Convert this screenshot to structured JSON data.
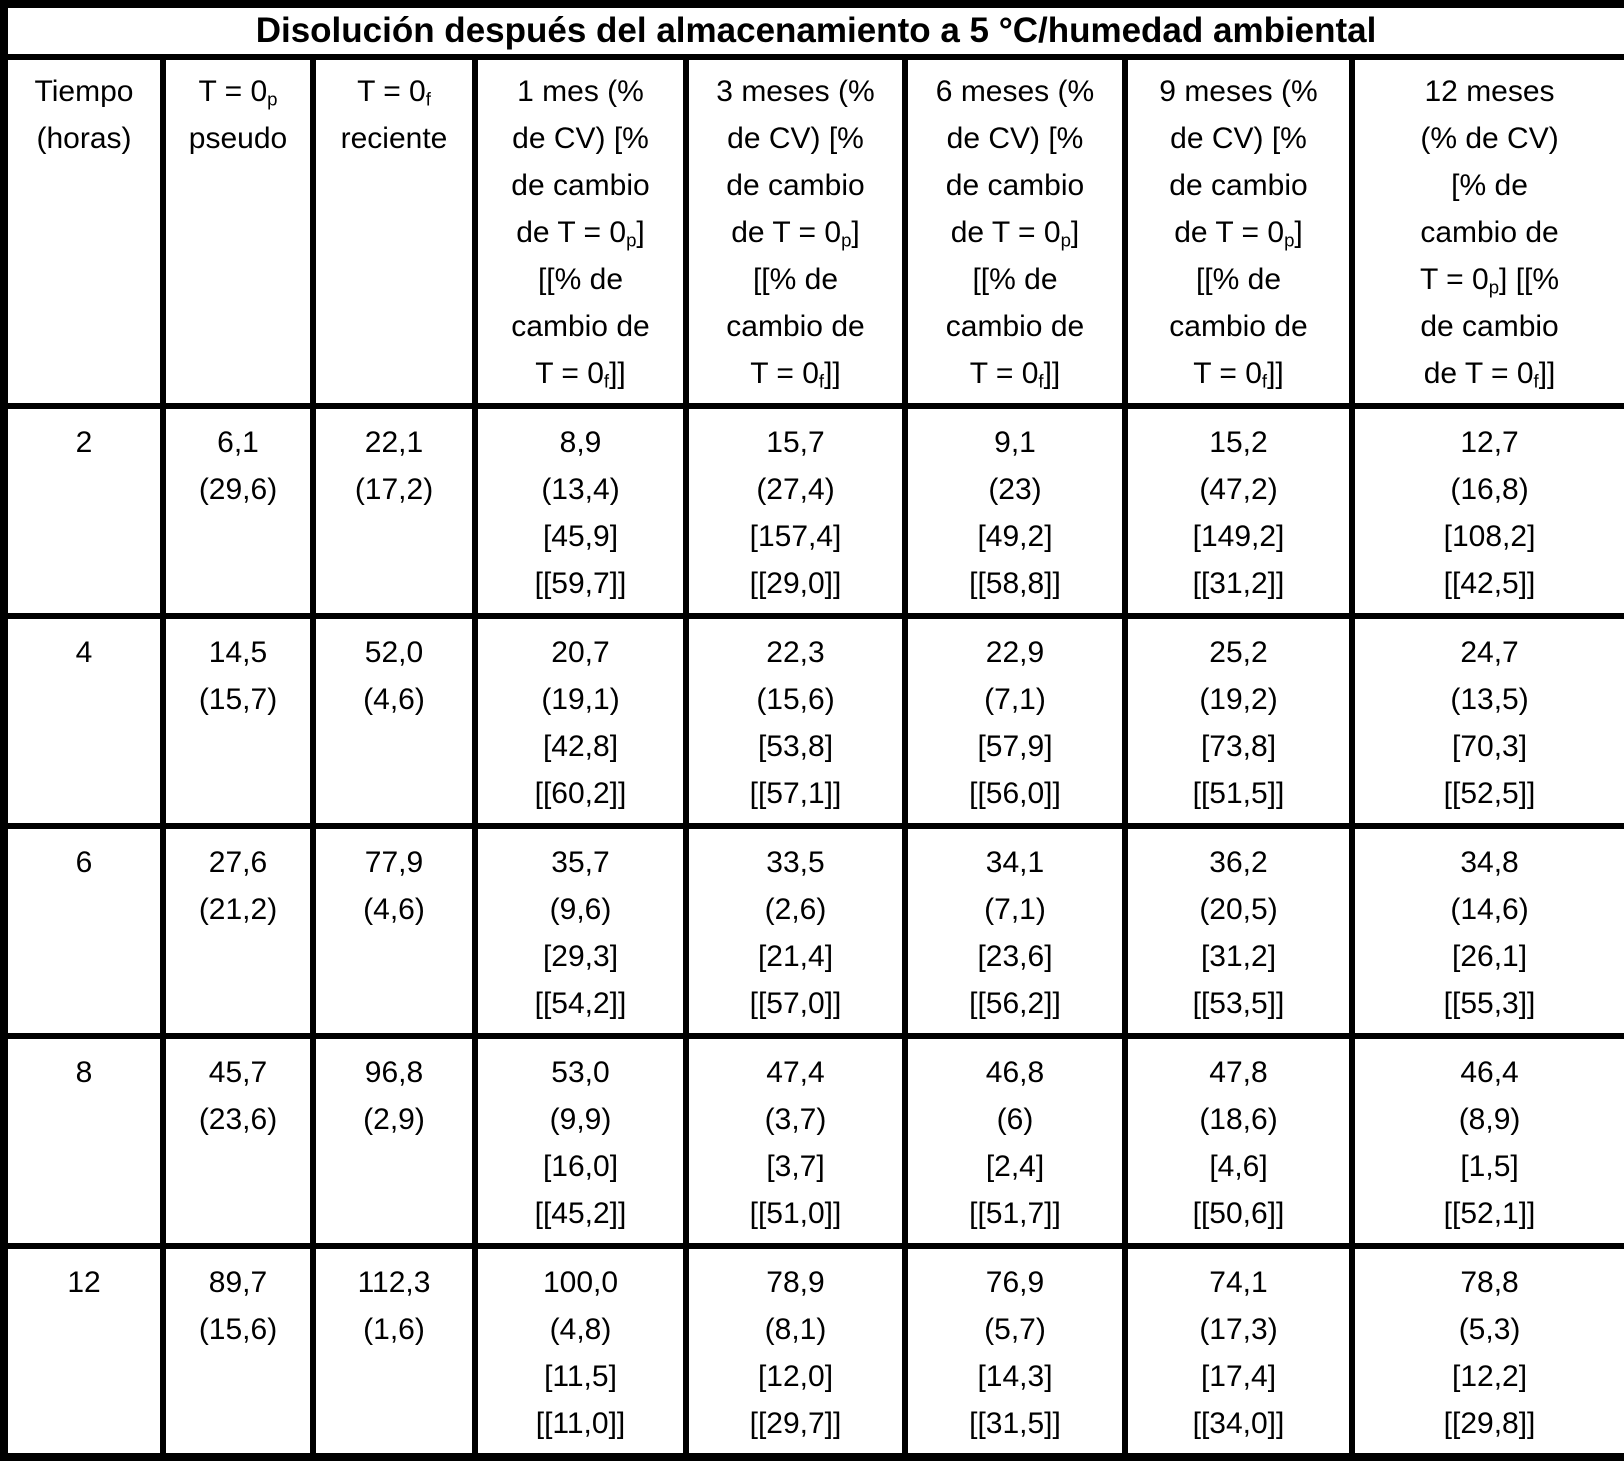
{
  "title": "Disolución después del almacenamiento a 5 °C/humedad ambiental",
  "columns": [
    "Tiempo\n(horas)",
    "T = 0_{p}\npseudo",
    "T = 0_{f}\nreciente",
    "1 mes (%\nde CV) [%\nde cambio\nde T = 0_{p}]\n[[% de\ncambio de\nT = 0_{f}]]",
    "3 meses (%\nde CV) [%\nde cambio\nde T = 0_{p}]\n[[% de\ncambio de\nT = 0_{f}]]",
    "6 meses (%\nde CV) [%\nde cambio\nde T = 0_{p}]\n[[% de\ncambio de\nT = 0_{f}]]",
    "9 meses (%\nde CV) [%\nde cambio\nde T = 0_{p}]\n[[% de\ncambio de\nT = 0_{f}]]",
    "12 meses\n(% de CV)\n[% de\ncambio de\nT = 0_{p}] [[%\nde cambio\nde T = 0_{f}]]"
  ],
  "rows": [
    {
      "time": "2",
      "cells": [
        [
          "6,1",
          "(29,6)"
        ],
        [
          "22,1",
          "(17,2)"
        ],
        [
          "8,9",
          "(13,4)",
          "[45,9]",
          "[[59,7]]"
        ],
        [
          "15,7",
          "(27,4)",
          "[157,4]",
          "[[29,0]]"
        ],
        [
          "9,1",
          "(23)",
          "[49,2]",
          "[[58,8]]"
        ],
        [
          "15,2",
          "(47,2)",
          "[149,2]",
          "[[31,2]]"
        ],
        [
          "12,7",
          "(16,8)",
          "[108,2]",
          "[[42,5]]"
        ]
      ]
    },
    {
      "time": "4",
      "cells": [
        [
          "14,5",
          "(15,7)"
        ],
        [
          "52,0",
          "(4,6)"
        ],
        [
          "20,7",
          "(19,1)",
          "[42,8]",
          "[[60,2]]"
        ],
        [
          "22,3",
          "(15,6)",
          "[53,8]",
          "[[57,1]]"
        ],
        [
          "22,9",
          "(7,1)",
          "[57,9]",
          "[[56,0]]"
        ],
        [
          "25,2",
          "(19,2)",
          "[73,8]",
          "[[51,5]]"
        ],
        [
          "24,7",
          "(13,5)",
          "[70,3]",
          "[[52,5]]"
        ]
      ]
    },
    {
      "time": "6",
      "cells": [
        [
          "27,6",
          "(21,2)"
        ],
        [
          "77,9",
          "(4,6)"
        ],
        [
          "35,7",
          "(9,6)",
          "[29,3]",
          "[[54,2]]"
        ],
        [
          "33,5",
          "(2,6)",
          "[21,4]",
          "[[57,0]]"
        ],
        [
          "34,1",
          "(7,1)",
          "[23,6]",
          "[[56,2]]"
        ],
        [
          "36,2",
          "(20,5)",
          "[31,2]",
          "[[53,5]]"
        ],
        [
          "34,8",
          "(14,6)",
          "[26,1]",
          "[[55,3]]"
        ]
      ]
    },
    {
      "time": "8",
      "cells": [
        [
          "45,7",
          "(23,6)"
        ],
        [
          "96,8",
          "(2,9)"
        ],
        [
          "53,0",
          "(9,9)",
          "[16,0]",
          "[[45,2]]"
        ],
        [
          "47,4",
          "(3,7)",
          "[3,7]",
          "[[51,0]]"
        ],
        [
          "46,8",
          "(6)",
          "[2,4]",
          "[[51,7]]"
        ],
        [
          "47,8",
          "(18,6)",
          "[4,6]",
          "[[50,6]]"
        ],
        [
          "46,4",
          "(8,9)",
          "[1,5]",
          "[[52,1]]"
        ]
      ]
    },
    {
      "time": "12",
      "cells": [
        [
          "89,7",
          "(15,6)"
        ],
        [
          "112,3",
          "(1,6)"
        ],
        [
          "100,0",
          "(4,8)",
          "[11,5]",
          "[[11,0]]"
        ],
        [
          "78,9",
          "(8,1)",
          "[12,0]",
          "[[29,7]]"
        ],
        [
          "76,9",
          "(5,7)",
          "[14,3]",
          "[[31,5]]"
        ],
        [
          "74,1",
          "(17,3)",
          "[17,4]",
          "[[34,0]]"
        ],
        [
          "78,8",
          "(5,3)",
          "[12,2]",
          "[[29,8]]"
        ]
      ]
    }
  ]
}
